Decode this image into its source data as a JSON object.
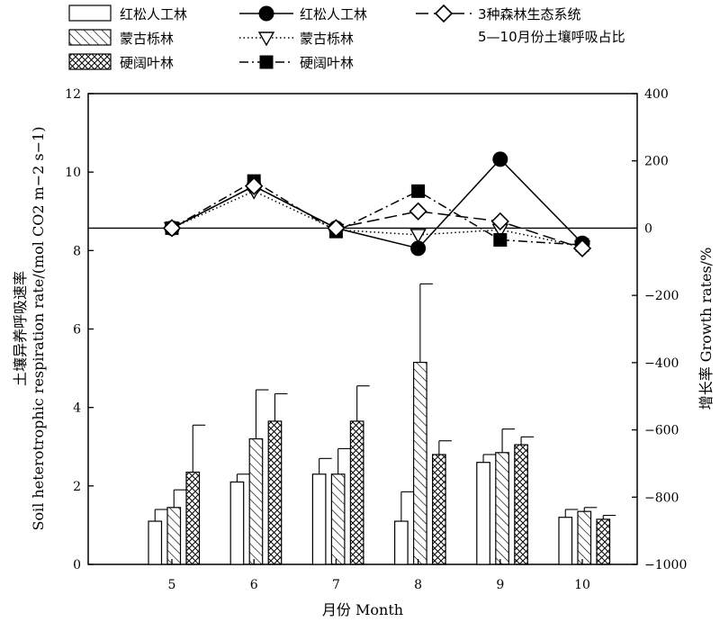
{
  "chart_data": {
    "type": "bar",
    "categories": [
      "5",
      "6",
      "7",
      "8",
      "9",
      "10"
    ],
    "xlabel": "月份 Month",
    "ylabel": "土壤异养呼吸速率",
    "ylabel_en": "Soil heterotrophic respiration rate/",
    "ylabel_unit": "(mol CO2 m−2 s−1)",
    "y2label": "增长率 Growth rates/%",
    "ylim": [
      0,
      12
    ],
    "y_ticks": [
      0,
      2,
      4,
      6,
      8,
      10,
      12
    ],
    "y2lim": [
      -1000,
      400
    ],
    "y2_ticks": [
      -1000,
      -800,
      -600,
      -400,
      -200,
      0,
      200,
      400
    ],
    "bar_series": [
      {
        "name": "红松人工林",
        "values": [
          1.1,
          2.1,
          2.3,
          1.1,
          2.6,
          1.2
        ],
        "errors": [
          0.3,
          0.2,
          0.4,
          0.75,
          0.2,
          0.2
        ],
        "pattern": "open"
      },
      {
        "name": "蒙古栎林",
        "values": [
          1.45,
          3.2,
          2.3,
          5.15,
          2.85,
          1.35
        ],
        "errors": [
          0.45,
          1.25,
          0.65,
          2.0,
          0.6,
          0.1
        ],
        "pattern": "hatch"
      },
      {
        "name": "硬阔叶林",
        "values": [
          2.35,
          3.65,
          3.65,
          2.8,
          3.05,
          1.15
        ],
        "errors": [
          1.2,
          0.7,
          0.9,
          0.35,
          0.2,
          0.1
        ],
        "pattern": "cross"
      }
    ],
    "line_series": [
      {
        "name": "红松人工林",
        "values": [
          0,
          125,
          0,
          -60,
          205,
          -45
        ],
        "marker": "filled-circle",
        "dash": "solid"
      },
      {
        "name": "蒙古栎林",
        "values": [
          0,
          110,
          -5,
          -20,
          -5,
          -55
        ],
        "marker": "open-triangle",
        "dash": "dotted"
      },
      {
        "name": "硬阔叶林",
        "values": [
          0,
          140,
          -10,
          110,
          -35,
          -50
        ],
        "marker": "filled-square",
        "dash": "dashdot"
      },
      {
        "name": "3种森林生态系统\n5—10月份土壤呼吸占比",
        "values": [
          0,
          125,
          0,
          50,
          20,
          -60
        ],
        "marker": "open-diamond",
        "dash": "longdash"
      }
    ],
    "legend_placement": "top",
    "grid": false
  }
}
